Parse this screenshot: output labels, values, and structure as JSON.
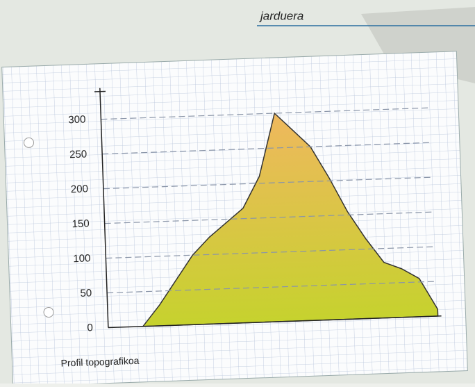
{
  "header": "jarduera",
  "chart_data": {
    "type": "area",
    "title": "Profil topografikoa",
    "categories": [
      null,
      null,
      null,
      null,
      null,
      null,
      null,
      null,
      null,
      null,
      null,
      null,
      null,
      null,
      null,
      null,
      null,
      null
    ],
    "values": [
      0,
      30,
      65,
      100,
      125,
      145,
      165,
      210,
      300,
      275,
      250,
      205,
      155,
      115,
      80,
      70,
      55,
      10
    ],
    "colors": [
      "#c6d22e",
      "#efb85e"
    ],
    "ylim": [
      0,
      340
    ],
    "yticks": [
      0,
      50,
      100,
      150,
      200,
      250,
      300
    ],
    "grid": true
  }
}
